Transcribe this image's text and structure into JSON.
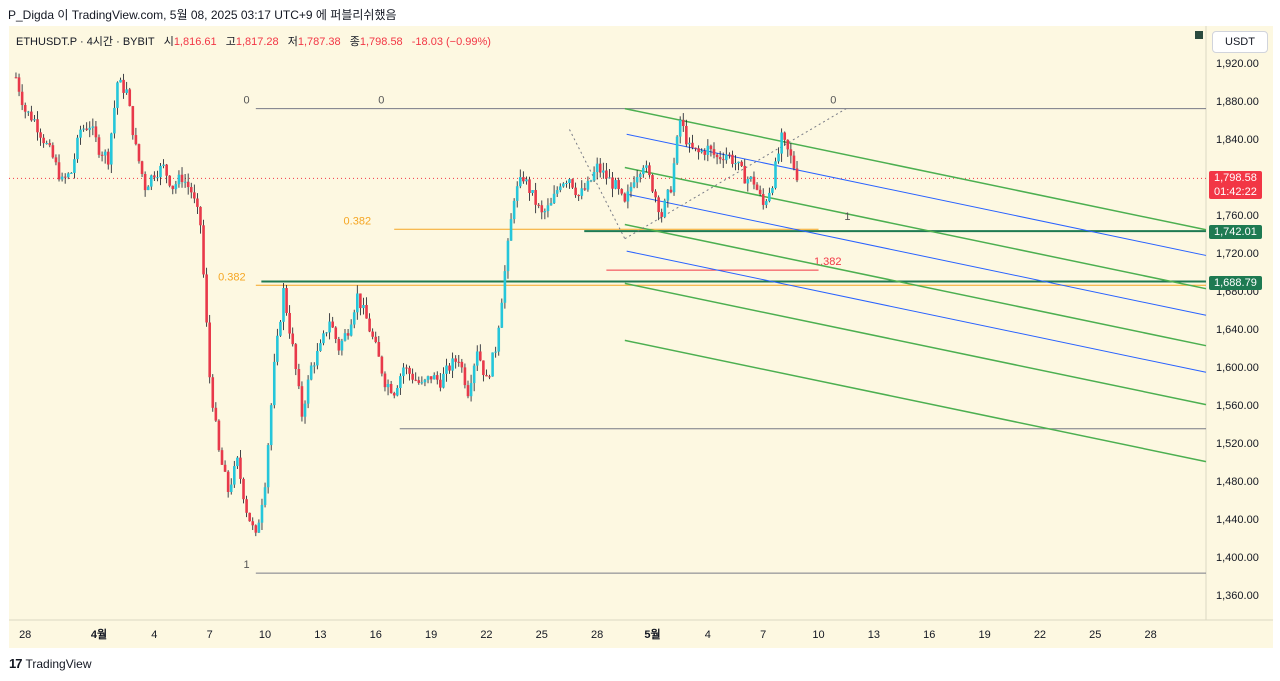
{
  "caption": "P_Digda 이 TradingView.com, 5월 08, 2025 03:17 UTC+9 에 퍼블리쉬했음",
  "legend": {
    "symbol": "ETHUSDT.P · 4시간 · BYBIT",
    "open_label": "시",
    "open": "1,816.61",
    "high_label": "고",
    "high": "1,817.28",
    "low_label": "저",
    "low": "1,787.38",
    "close_label": "종",
    "close": "1,798.58",
    "change": "-18.03 (−0.99%)"
  },
  "currency": "USDT",
  "brand": "TradingView",
  "price_tags": [
    {
      "value": "1,798.58",
      "sub": "01:42:22",
      "price": 1798.58,
      "color": "#f23645"
    },
    {
      "value": "1,742.01",
      "price": 1742.01,
      "color": "#1e7a52"
    },
    {
      "value": "1,688.79",
      "price": 1688.79,
      "color": "#1e7a52"
    }
  ],
  "colors": {
    "background": "#fdf8e1",
    "up": "#26c6da",
    "down": "#e8394a",
    "fib_green": "#4caf50",
    "fib_blue": "#2962ff",
    "level_orange": "#f5a623"
  },
  "chart_data": {
    "type": "candlestick",
    "symbol": "ETHUSDT.P",
    "timeframe": "4시간",
    "exchange": "BYBIT",
    "y_ticks": [
      1920,
      1880,
      1840,
      1800,
      1760,
      1720,
      1680,
      1640,
      1600,
      1560,
      1520,
      1480,
      1440,
      1400,
      1360
    ],
    "y_tick_labels": [
      "1,920.00",
      "1,880.00",
      "1,840.00",
      "1,800.00",
      "1,760.00",
      "1,720.00",
      "1,680.00",
      "1,640.00",
      "1,600.00",
      "1,560.00",
      "1,520.00",
      "1,480.00",
      "1,440.00",
      "1,400.00",
      "1,360.00"
    ],
    "ylim": [
      1320,
      1955
    ],
    "x_ticks": [
      {
        "label": "28",
        "day": -4,
        "bold": false
      },
      {
        "label": "4월",
        "day": 0,
        "bold": true
      },
      {
        "label": "4",
        "day": 3,
        "bold": false
      },
      {
        "label": "7",
        "day": 6,
        "bold": false
      },
      {
        "label": "10",
        "day": 9,
        "bold": false
      },
      {
        "label": "13",
        "day": 12,
        "bold": false
      },
      {
        "label": "16",
        "day": 15,
        "bold": false
      },
      {
        "label": "19",
        "day": 18,
        "bold": false
      },
      {
        "label": "22",
        "day": 21,
        "bold": false
      },
      {
        "label": "25",
        "day": 24,
        "bold": false
      },
      {
        "label": "28",
        "day": 27,
        "bold": false
      },
      {
        "label": "5월",
        "day": 30,
        "bold": true
      },
      {
        "label": "4",
        "day": 33,
        "bold": false
      },
      {
        "label": "7",
        "day": 36,
        "bold": false
      },
      {
        "label": "10",
        "day": 39,
        "bold": false
      },
      {
        "label": "13",
        "day": 42,
        "bold": false
      },
      {
        "label": "16",
        "day": 45,
        "bold": false
      },
      {
        "label": "19",
        "day": 48,
        "bold": false
      },
      {
        "label": "22",
        "day": 51,
        "bold": false
      },
      {
        "label": "25",
        "day": 54,
        "bold": false
      },
      {
        "label": "28",
        "day": 57,
        "bold": false
      }
    ],
    "close_path": [
      [
        -4.5,
        1905
      ],
      [
        -4,
        1870
      ],
      [
        -3.5,
        1860
      ],
      [
        -3,
        1840
      ],
      [
        -2.5,
        1820
      ],
      [
        -2,
        1795
      ],
      [
        -1.5,
        1805
      ],
      [
        -1,
        1850
      ],
      [
        -0.5,
        1855
      ],
      [
        0,
        1830
      ],
      [
        0.5,
        1820
      ],
      [
        1,
        1900
      ],
      [
        1.5,
        1890
      ],
      [
        2,
        1830
      ],
      [
        2.5,
        1790
      ],
      [
        3,
        1805
      ],
      [
        3.5,
        1810
      ],
      [
        4,
        1790
      ],
      [
        4.5,
        1800
      ],
      [
        5,
        1785
      ],
      [
        5.5,
        1750
      ],
      [
        6,
        1590
      ],
      [
        6.5,
        1510
      ],
      [
        7,
        1470
      ],
      [
        7.5,
        1500
      ],
      [
        8,
        1450
      ],
      [
        8.5,
        1420
      ],
      [
        9,
        1480
      ],
      [
        9.5,
        1600
      ],
      [
        10,
        1680
      ],
      [
        10.5,
        1620
      ],
      [
        11,
        1550
      ],
      [
        11.5,
        1600
      ],
      [
        12,
        1620
      ],
      [
        12.5,
        1650
      ],
      [
        13,
        1620
      ],
      [
        13.5,
        1640
      ],
      [
        14,
        1675
      ],
      [
        14.5,
        1650
      ],
      [
        15,
        1620
      ],
      [
        15.5,
        1585
      ],
      [
        16,
        1575
      ],
      [
        16.5,
        1600
      ],
      [
        17,
        1590
      ],
      [
        17.5,
        1580
      ],
      [
        18,
        1590
      ],
      [
        18.5,
        1585
      ],
      [
        19,
        1600
      ],
      [
        19.5,
        1610
      ],
      [
        20,
        1575
      ],
      [
        20.5,
        1620
      ],
      [
        21,
        1585
      ],
      [
        21.5,
        1620
      ],
      [
        22,
        1700
      ],
      [
        22.5,
        1780
      ],
      [
        23,
        1800
      ],
      [
        23.5,
        1780
      ],
      [
        24,
        1760
      ],
      [
        24.5,
        1770
      ],
      [
        25,
        1795
      ],
      [
        25.5,
        1800
      ],
      [
        26,
        1780
      ],
      [
        26.5,
        1790
      ],
      [
        27,
        1810
      ],
      [
        27.5,
        1800
      ],
      [
        28,
        1790
      ],
      [
        28.5,
        1770
      ],
      [
        29,
        1800
      ],
      [
        29.5,
        1815
      ],
      [
        30,
        1790
      ],
      [
        30.5,
        1760
      ],
      [
        31,
        1790
      ],
      [
        31.5,
        1860
      ],
      [
        32,
        1830
      ],
      [
        32.5,
        1825
      ],
      [
        33,
        1830
      ],
      [
        33.5,
        1820
      ],
      [
        34,
        1825
      ],
      [
        34.5,
        1815
      ],
      [
        35,
        1800
      ],
      [
        35.5,
        1795
      ],
      [
        36,
        1770
      ],
      [
        36.5,
        1795
      ],
      [
        37,
        1840
      ],
      [
        37.5,
        1820
      ],
      [
        37.9,
        1798.58
      ]
    ],
    "drawings": {
      "horizontal_lines": [
        {
          "price": 1872,
          "from_day": 8.5,
          "to_day": 60,
          "color": "#787b86",
          "labels": [
            {
              "text": "0",
              "day": 8,
              "color": "#555"
            },
            {
              "text": "0",
              "day": 15.3,
              "color": "#555"
            },
            {
              "text": "0",
              "day": 39.8,
              "color": "#555"
            }
          ]
        },
        {
          "price": 1383,
          "from_day": 8.5,
          "to_day": 60,
          "color": "#787b86",
          "labels": [
            {
              "text": "1",
              "day": 8,
              "color": "#555"
            }
          ]
        },
        {
          "price": 1535,
          "from_day": 16.3,
          "to_day": 60,
          "color": "#787b86",
          "labels": []
        },
        {
          "price": 1745,
          "from_day": 16,
          "to_day": 39,
          "color": "#f5a623",
          "labels": [
            {
              "text": "0.382",
              "day": 14,
              "color": "#f5a623"
            }
          ]
        },
        {
          "price": 1686,
          "from_day": 8.5,
          "to_day": 60,
          "color": "#f5a623",
          "labels": [
            {
              "text": "0.382",
              "day": 7.2,
              "color": "#f5a623"
            }
          ]
        },
        {
          "price": 1743,
          "from_day": 26.3,
          "to_day": 60,
          "color": "#1e7a52",
          "labels": []
        },
        {
          "price": 1690,
          "from_day": 8.8,
          "to_day": 60,
          "color": "#1e7a52",
          "labels": []
        },
        {
          "price": 1702,
          "from_day": 27.5,
          "to_day": 39,
          "color": "#f23645",
          "labels": [
            {
              "text": "1.382",
              "day": 39.5,
              "color": "#f23645"
            }
          ]
        }
      ],
      "fib_channel": {
        "start_day": 28.5,
        "end_day": 60,
        "green": [
          1872,
          1810,
          1750,
          1688,
          1628
        ],
        "blue": [
          1845,
          1782,
          1722
        ],
        "slope_per_day": -4.05
      },
      "level_label": {
        "text": "1",
        "day": 40.4,
        "price": 1755
      }
    }
  }
}
